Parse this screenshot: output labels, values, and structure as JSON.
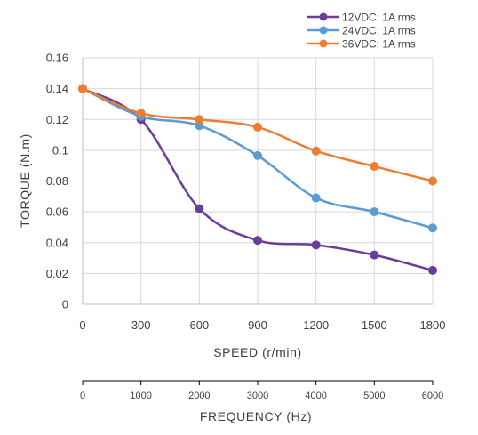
{
  "chart_data": {
    "type": "line",
    "xlabel": "SPEED (r/min)",
    "ylabel": "TORQUE (N.m)",
    "x": [
      0,
      300,
      600,
      900,
      1200,
      1500,
      1800
    ],
    "x_tick_labels": [
      "0",
      "300",
      "600",
      "900",
      "1200",
      "1500",
      "1800"
    ],
    "ylim": [
      0,
      0.16
    ],
    "y_ticks": [
      0,
      0.02,
      0.04,
      0.06,
      0.08,
      0.1,
      0.12,
      0.14,
      0.16
    ],
    "y_tick_labels": [
      "0",
      "0.02",
      "0.04",
      "0.06",
      "0.08",
      "0.1",
      "0.12",
      "0.14",
      "0.16"
    ],
    "grid": true,
    "smooth": true,
    "legend_position": "top-right",
    "series": [
      {
        "name": "12VDC; 1A rms",
        "color": "#6A3D9A",
        "values": [
          0.14,
          0.12,
          0.062,
          0.0415,
          0.0385,
          0.032,
          0.022
        ]
      },
      {
        "name": "24VDC; 1A rms",
        "color": "#5B9BD5",
        "values": [
          0.14,
          0.122,
          0.116,
          0.0965,
          0.069,
          0.06,
          0.0495
        ]
      },
      {
        "name": "36VDC; 1A rms",
        "color": "#ED7D31",
        "values": [
          0.14,
          0.124,
          0.12,
          0.115,
          0.0995,
          0.0895,
          0.08
        ]
      }
    ],
    "secondary_x_axis": {
      "label": "FREQUENCY (Hz)",
      "tick_labels": [
        "0",
        "1000",
        "2000",
        "3000",
        "4000",
        "5000",
        "6000"
      ]
    }
  }
}
